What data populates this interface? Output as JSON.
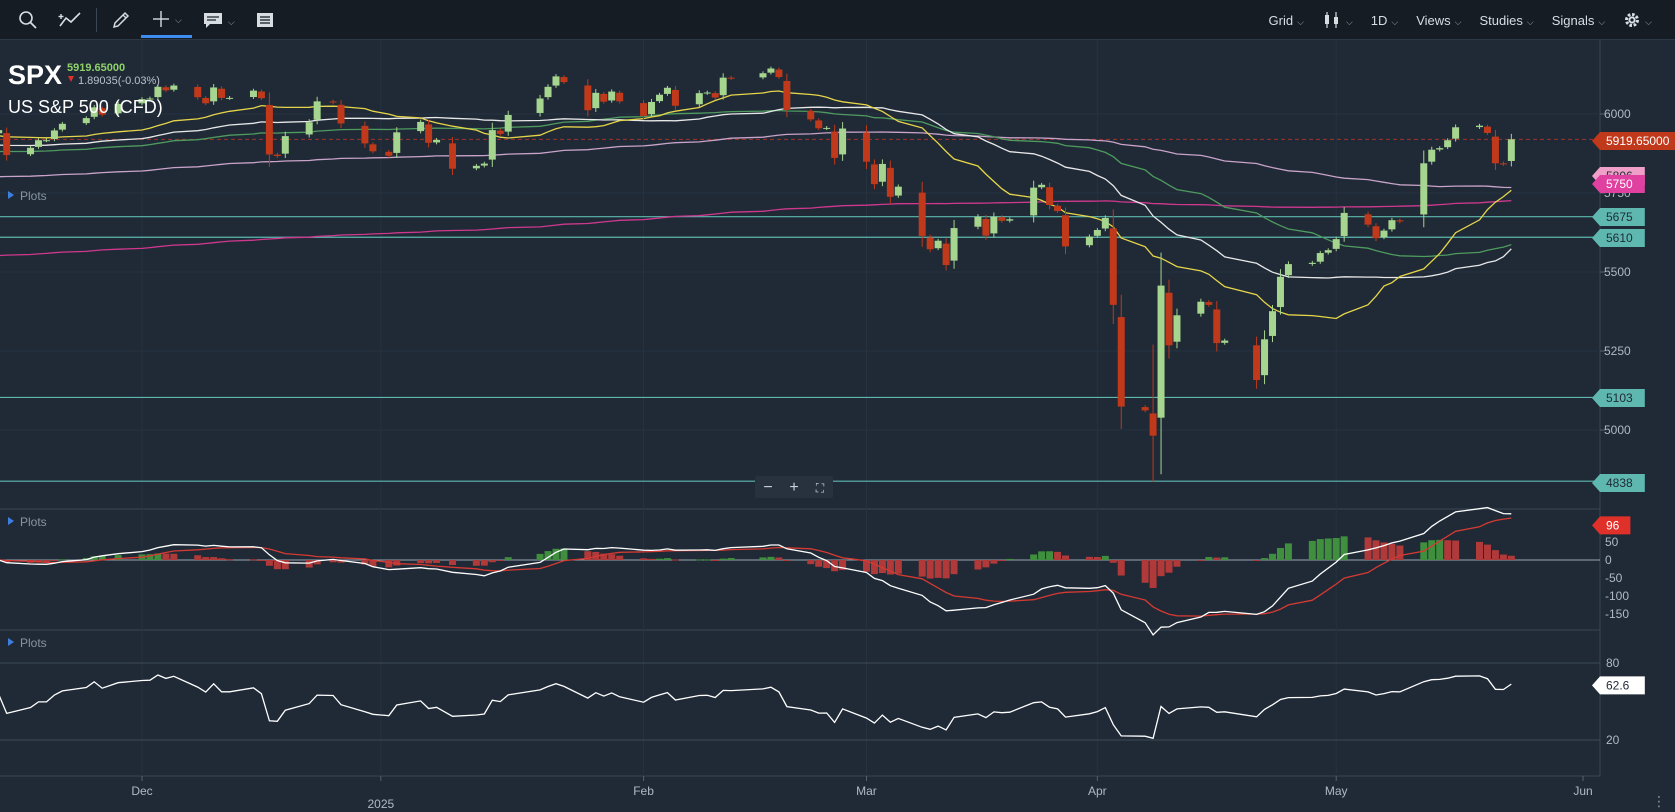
{
  "toolbar": {
    "items": [
      "Grid",
      "1D",
      "Views",
      "Studies",
      "Signals"
    ],
    "icons": [
      "search-icon",
      "trend-line-icon",
      "pencil-icon",
      "crosshair-icon",
      "comment-icon",
      "news-icon",
      "candlestick-icon",
      "gear-icon"
    ]
  },
  "symbol": {
    "ticker": "SPX",
    "price": "5919.65000",
    "change": "1.89035(-0.03%)",
    "name": "US S&P 500 (CFD)"
  },
  "panels": {
    "price_plots_label": "Plots",
    "macd_plots_label": "Plots",
    "rsi_plots_label": "Plots"
  },
  "zoom_controls": [
    "−",
    "+",
    "⛶"
  ],
  "price_axis": {
    "ticks": [
      "6000",
      "5750",
      "5500",
      "5250",
      "5000"
    ],
    "labels": [
      {
        "text": "5919.65000",
        "color": "#c0391b"
      },
      {
        "text": "5806",
        "color": "#f0a0c8"
      },
      {
        "text": "5750",
        "color": "#e040a0"
      },
      {
        "text": "5675",
        "color": "#5fb8b0"
      },
      {
        "text": "5610",
        "color": "#5fb8b0"
      },
      {
        "text": "5103",
        "color": "#5fb8b0"
      },
      {
        "text": "4838",
        "color": "#5fb8b0"
      }
    ]
  },
  "macd_axis": {
    "ticks": [
      "100",
      "50",
      "0",
      "-50",
      "-100",
      "-150"
    ],
    "label": "96"
  },
  "rsi_axis": {
    "ticks": [
      "80",
      "20"
    ],
    "label": "62.6"
  },
  "time_axis": {
    "labels": [
      "Dec",
      "2025",
      "Feb",
      "Mar",
      "Apr",
      "May",
      "Jun"
    ]
  },
  "chart_data": {
    "type": "candlestick",
    "symbol": "SPX",
    "ylim": [
      4800,
      6150
    ],
    "horizontal_levels": [
      5675,
      5610,
      5103,
      4838
    ],
    "dates": [
      "2024-11-14",
      "2024-11-15",
      "2024-11-18",
      "2024-11-19",
      "2024-11-20",
      "2024-11-21",
      "2024-11-22",
      "2024-11-25",
      "2024-11-26",
      "2024-11-27",
      "2024-11-29",
      "2024-12-02",
      "2024-12-03",
      "2024-12-04",
      "2024-12-05",
      "2024-12-06",
      "2024-12-09",
      "2024-12-10",
      "2024-12-11",
      "2024-12-12",
      "2024-12-13",
      "2024-12-16",
      "2024-12-17",
      "2024-12-18",
      "2024-12-19",
      "2024-12-20",
      "2024-12-23",
      "2024-12-24",
      "2024-12-26",
      "2024-12-27",
      "2024-12-30",
      "2024-12-31",
      "2025-01-02",
      "2025-01-03",
      "2025-01-06",
      "2025-01-07",
      "2025-01-08",
      "2025-01-10",
      "2025-01-13",
      "2025-01-14",
      "2025-01-15",
      "2025-01-16",
      "2025-01-17",
      "2025-01-21",
      "2025-01-22",
      "2025-01-23",
      "2025-01-24",
      "2025-01-27",
      "2025-01-28",
      "2025-01-29",
      "2025-01-30",
      "2025-01-31",
      "2025-02-03",
      "2025-02-04",
      "2025-02-05",
      "2025-02-06",
      "2025-02-07",
      "2025-02-10",
      "2025-02-11",
      "2025-02-12",
      "2025-02-13",
      "2025-02-14",
      "2025-02-18",
      "2025-02-19",
      "2025-02-20",
      "2025-02-21",
      "2025-02-24",
      "2025-02-25",
      "2025-02-26",
      "2025-02-27",
      "2025-02-28",
      "2025-03-03",
      "2025-03-04",
      "2025-03-05",
      "2025-03-06",
      "2025-03-07",
      "2025-03-10",
      "2025-03-11",
      "2025-03-12",
      "2025-03-13",
      "2025-03-14",
      "2025-03-17",
      "2025-03-18",
      "2025-03-19",
      "2025-03-20",
      "2025-03-21",
      "2025-03-24",
      "2025-03-25",
      "2025-03-26",
      "2025-03-27",
      "2025-03-28",
      "2025-03-31",
      "2025-04-01",
      "2025-04-02",
      "2025-04-03",
      "2025-04-04",
      "2025-04-07",
      "2025-04-08",
      "2025-04-09",
      "2025-04-10",
      "2025-04-11",
      "2025-04-14",
      "2025-04-15",
      "2025-04-16",
      "2025-04-17",
      "2025-04-21",
      "2025-04-22",
      "2025-04-23",
      "2025-04-24",
      "2025-04-25",
      "2025-04-28",
      "2025-04-29",
      "2025-04-30",
      "2025-05-01",
      "2025-05-02",
      "2025-05-05",
      "2025-05-06",
      "2025-05-07",
      "2025-05-08",
      "2025-05-09",
      "2025-05-12",
      "2025-05-13",
      "2025-05-14",
      "2025-05-15",
      "2025-05-16",
      "2025-05-19",
      "2025-05-20",
      "2025-05-21",
      "2025-05-22",
      "2025-05-23"
    ],
    "close": [
      5949,
      5870,
      5893,
      5917,
      5917,
      5948,
      5969,
      5987,
      6021,
      5998,
      6032,
      6047,
      6049,
      6086,
      6075,
      6090,
      6053,
      6034,
      6084,
      6051,
      6051,
      6074,
      6050,
      5872,
      5867,
      5930,
      5974,
      6040,
      6037,
      5970,
      5907,
      5882,
      5868,
      5942,
      5975,
      5909,
      5918,
      5827,
      5836,
      5843,
      5949,
      5937,
      5997,
      6049,
      6086,
      6119,
      6101,
      6012,
      6067,
      6039,
      6071,
      6040,
      5994,
      6038,
      6061,
      6083,
      6026,
      6066,
      6068,
      6052,
      6115,
      6114,
      6129,
      6144,
      6117,
      6013,
      5983,
      5955,
      5956,
      5861,
      5954,
      5849,
      5778,
      5842,
      5738,
      5770,
      5614,
      5572,
      5599,
      5522,
      5639,
      5675,
      5615,
      5675,
      5662,
      5667,
      5767,
      5776,
      5712,
      5693,
      5581,
      5612,
      5633,
      5671,
      5396,
      5074,
      5062,
      4982,
      5457,
      5268,
      5363,
      5406,
      5396,
      5275,
      5283,
      5158,
      5287,
      5376,
      5485,
      5525,
      5529,
      5560,
      5569,
      5604,
      5687,
      5650,
      5607,
      5631,
      5664,
      5660,
      5844,
      5887,
      5892,
      5917,
      5958,
      5963,
      5940,
      5844,
      5842,
      5920
    ]
  }
}
